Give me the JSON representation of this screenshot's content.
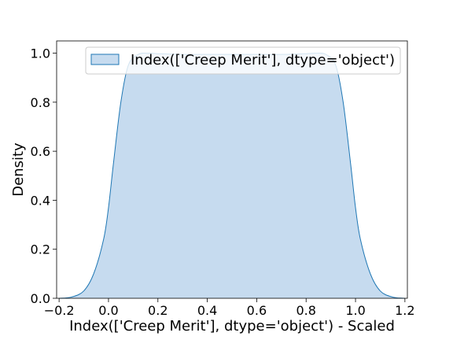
{
  "chart_data": {
    "type": "area",
    "xlabel": "Index(['Creep Merit'], dtype='object') - Scaled",
    "ylabel": "Density",
    "xlim": [
      -0.21,
      1.21
    ],
    "ylim": [
      0,
      1.05
    ],
    "x_ticks": [
      "−0.2",
      "0.0",
      "0.2",
      "0.4",
      "0.6",
      "0.8",
      "1.0",
      "1.2"
    ],
    "x_tick_values": [
      -0.2,
      0.0,
      0.2,
      0.4,
      0.6,
      0.8,
      1.0,
      1.2
    ],
    "y_ticks": [
      "0.0",
      "0.2",
      "0.4",
      "0.6",
      "0.8",
      "1.0"
    ],
    "y_tick_values": [
      0.0,
      0.2,
      0.4,
      0.6,
      0.8,
      1.0
    ],
    "grid": false,
    "legend_position": "top-right",
    "series": [
      {
        "name": "Index(['Creep Merit'], dtype='object')",
        "line_color": "#1f77b4",
        "fill_color": "#c6dbef",
        "x": [
          -0.2,
          -0.15,
          -0.1,
          -0.06,
          -0.02,
          0.0,
          0.02,
          0.05,
          0.08,
          0.12,
          0.16,
          0.2,
          0.3,
          0.4,
          0.5,
          0.6,
          0.7,
          0.8,
          0.84,
          0.88,
          0.92,
          0.95,
          0.98,
          1.0,
          1.02,
          1.06,
          1.1,
          1.15,
          1.2
        ],
        "y": [
          0.0,
          0.005,
          0.03,
          0.1,
          0.24,
          0.37,
          0.55,
          0.8,
          0.95,
          0.995,
          1.0,
          0.998,
          0.995,
          0.995,
          0.995,
          0.995,
          0.995,
          0.998,
          1.0,
          0.995,
          0.95,
          0.8,
          0.55,
          0.37,
          0.24,
          0.1,
          0.03,
          0.005,
          0.0
        ]
      }
    ]
  }
}
